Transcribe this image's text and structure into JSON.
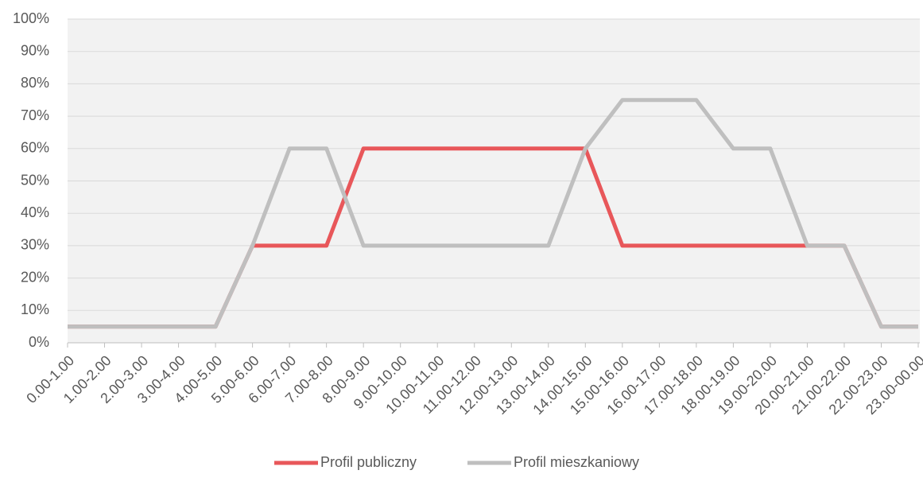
{
  "chart_data": {
    "type": "line",
    "categories": [
      "0.00-1.00",
      "1.00-2.00",
      "2.00-3.00",
      "3.00-4.00",
      "4.00-5.00",
      "5.00-6.00",
      "6.00-7.00",
      "7.00-8.00",
      "8.00-9.00",
      "9.00-10.00",
      "10.00-11.00",
      "11.00-12.00",
      "12.00-13.00",
      "13.00-14.00",
      "14.00-15.00",
      "15.00-16.00",
      "16.00-17.00",
      "17.00-18.00",
      "18.00-19.00",
      "19.00-20.00",
      "20.00-21.00",
      "21.00-22.00",
      "22.00-23.00",
      "23.00-00.00"
    ],
    "series": [
      {
        "name": "Profil publiczny",
        "color": "#e8575a",
        "values": [
          5,
          5,
          5,
          5,
          5,
          30,
          30,
          30,
          60,
          60,
          60,
          60,
          60,
          60,
          60,
          30,
          30,
          30,
          30,
          30,
          30,
          30,
          5,
          5
        ]
      },
      {
        "name": "Profil mieszkaniowy",
        "color": "#bfbfbf",
        "values": [
          5,
          5,
          5,
          5,
          5,
          30,
          60,
          60,
          30,
          30,
          30,
          30,
          30,
          30,
          60,
          75,
          75,
          75,
          60,
          60,
          30,
          30,
          5,
          5
        ]
      }
    ],
    "ylim": [
      0,
      100
    ],
    "yticks": [
      {
        "value": 0,
        "label": "0%"
      },
      {
        "value": 10,
        "label": "10%"
      },
      {
        "value": 20,
        "label": "20%"
      },
      {
        "value": 30,
        "label": "30%"
      },
      {
        "value": 40,
        "label": "40%"
      },
      {
        "value": 50,
        "label": "50%"
      },
      {
        "value": 60,
        "label": "60%"
      },
      {
        "value": 70,
        "label": "70%"
      },
      {
        "value": 80,
        "label": "80%"
      },
      {
        "value": 90,
        "label": "90%"
      },
      {
        "value": 100,
        "label": "100%"
      }
    ],
    "grid": true,
    "legend": "bottom"
  }
}
